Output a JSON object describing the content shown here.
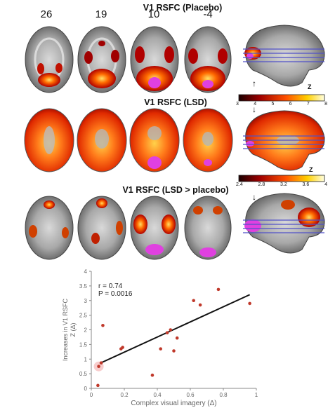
{
  "panels": {
    "placebo": {
      "title": "V1 RSFC (Placebo)",
      "colorbar_ticks": [
        "3",
        "4",
        "5",
        "6",
        "7",
        "8"
      ],
      "z_label": "Z"
    },
    "lsd": {
      "title": "V1 RSFC (LSD)",
      "colorbar_ticks": [
        "2.4",
        "2.8",
        "3.2",
        "3.6",
        "4"
      ],
      "z_label": "Z"
    },
    "contrast": {
      "title": "V1 RSFC (LSD > placebo)"
    }
  },
  "slice_positions": [
    "26",
    "19",
    "10",
    "-4"
  ],
  "colors": {
    "heat_low": "#8b0000",
    "heat_mid": "#ff4500",
    "heat_high": "#ffff99",
    "roi": "#e040e0",
    "line": "#5050c8"
  },
  "chart_data": {
    "type": "scatter",
    "title": "",
    "xlabel": "Complex visual imagery (Δ)",
    "ylabel": "Increases in V1 RSFC Z (Δ)",
    "xlim": [
      0,
      1
    ],
    "ylim": [
      0,
      4
    ],
    "xticks": [
      "0",
      "0.2",
      "0.4",
      "0.6",
      "0.8",
      "1"
    ],
    "yticks": [
      "0",
      "0.5",
      "1",
      "1.5",
      "2",
      "2.5",
      "3",
      "3.5",
      "4"
    ],
    "annotation": [
      "r = 0.74",
      "P = 0.0016"
    ],
    "points": [
      {
        "x": 0.04,
        "y": 0.1
      },
      {
        "x": 0.045,
        "y": 0.75
      },
      {
        "x": 0.06,
        "y": 0.87
      },
      {
        "x": 0.07,
        "y": 2.15
      },
      {
        "x": 0.18,
        "y": 1.35
      },
      {
        "x": 0.19,
        "y": 1.4
      },
      {
        "x": 0.37,
        "y": 0.45
      },
      {
        "x": 0.42,
        "y": 1.35
      },
      {
        "x": 0.46,
        "y": 1.9
      },
      {
        "x": 0.48,
        "y": 2.0
      },
      {
        "x": 0.5,
        "y": 1.28
      },
      {
        "x": 0.52,
        "y": 1.72
      },
      {
        "x": 0.62,
        "y": 3.0
      },
      {
        "x": 0.66,
        "y": 2.85
      },
      {
        "x": 0.77,
        "y": 3.38
      },
      {
        "x": 0.96,
        "y": 2.9
      }
    ],
    "highlight_point": {
      "x": 0.045,
      "y": 0.75
    },
    "fit_line": {
      "x": [
        0.05,
        0.96
      ],
      "y": [
        0.85,
        3.2
      ]
    },
    "grid": false
  }
}
